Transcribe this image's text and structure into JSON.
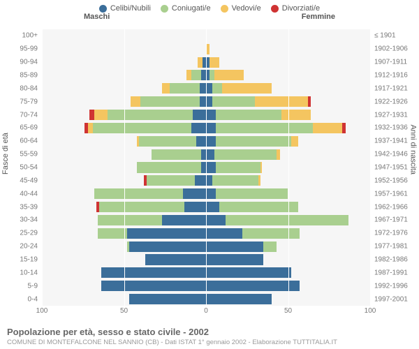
{
  "legend": [
    {
      "label": "Celibi/Nubili",
      "color": "#3b6e9a"
    },
    {
      "label": "Coniugati/e",
      "color": "#a9cf8f"
    },
    {
      "label": "Vedovi/e",
      "color": "#f4c560"
    },
    {
      "label": "Divorziati/e",
      "color": "#cf3333"
    }
  ],
  "gender_labels": {
    "male": "Maschi",
    "female": "Femmine"
  },
  "yaxis_left_title": "Fasce di età",
  "yaxis_right_title": "Anni di nascita",
  "xaxis": {
    "min": -100,
    "max": 100,
    "ticks": [
      -100,
      -50,
      0,
      50,
      100
    ],
    "tick_labels": [
      "100",
      "50",
      "0",
      "50",
      "100"
    ]
  },
  "grid_color": "#ffffff",
  "plot_bg": "#f6f6f6",
  "series_order": [
    "celibi",
    "coniugati",
    "vedovi",
    "divorziati"
  ],
  "series_colors": {
    "celibi": "#3b6e9a",
    "coniugati": "#a9cf8f",
    "vedovi": "#f4c560",
    "divorziati": "#cf3333"
  },
  "age_bands": [
    "0-4",
    "5-9",
    "10-14",
    "15-19",
    "20-24",
    "25-29",
    "30-34",
    "35-39",
    "40-44",
    "45-49",
    "50-54",
    "55-59",
    "60-64",
    "65-69",
    "70-74",
    "75-79",
    "80-84",
    "85-89",
    "90-94",
    "95-99",
    "100+"
  ],
  "year_bands": [
    "1997-2001",
    "1992-1996",
    "1987-1991",
    "1982-1986",
    "1977-1981",
    "1972-1976",
    "1967-1971",
    "1962-1966",
    "1957-1961",
    "1952-1956",
    "1947-1951",
    "1942-1946",
    "1937-1941",
    "1932-1936",
    "1927-1931",
    "1922-1926",
    "1917-1921",
    "1912-1916",
    "1907-1911",
    "1902-1906",
    "≤ 1901"
  ],
  "data": {
    "male": [
      {
        "celibi": 47,
        "coniugati": 0,
        "vedovi": 0,
        "divorziati": 0
      },
      {
        "celibi": 64,
        "coniugati": 0,
        "vedovi": 0,
        "divorziati": 0
      },
      {
        "celibi": 64,
        "coniugati": 0,
        "vedovi": 0,
        "divorziati": 0
      },
      {
        "celibi": 37,
        "coniugati": 0,
        "vedovi": 0,
        "divorziati": 0
      },
      {
        "celibi": 47,
        "coniugati": 1,
        "vedovi": 0,
        "divorziati": 0
      },
      {
        "celibi": 48,
        "coniugati": 18,
        "vedovi": 0,
        "divorziati": 0
      },
      {
        "celibi": 27,
        "coniugati": 39,
        "vedovi": 0,
        "divorziati": 0
      },
      {
        "celibi": 13,
        "coniugati": 52,
        "vedovi": 0,
        "divorziati": 2
      },
      {
        "celibi": 14,
        "coniugati": 54,
        "vedovi": 0,
        "divorziati": 0
      },
      {
        "celibi": 7,
        "coniugati": 29,
        "vedovi": 0,
        "divorziati": 2
      },
      {
        "celibi": 3,
        "coniugati": 39,
        "vedovi": 0,
        "divorziati": 0
      },
      {
        "celibi": 3,
        "coniugati": 30,
        "vedovi": 0,
        "divorziati": 0
      },
      {
        "celibi": 6,
        "coniugati": 35,
        "vedovi": 1,
        "divorziati": 0
      },
      {
        "celibi": 9,
        "coniugati": 60,
        "vedovi": 3,
        "divorziati": 2
      },
      {
        "celibi": 8,
        "coniugati": 52,
        "vedovi": 8,
        "divorziati": 3
      },
      {
        "celibi": 4,
        "coniugati": 36,
        "vedovi": 6,
        "divorziati": 0
      },
      {
        "celibi": 4,
        "coniugati": 18,
        "vedovi": 5,
        "divorziati": 0
      },
      {
        "celibi": 3,
        "coniugati": 6,
        "vedovi": 3,
        "divorziati": 0
      },
      {
        "celibi": 2,
        "coniugati": 0,
        "vedovi": 3,
        "divorziati": 0
      },
      {
        "celibi": 0,
        "coniugati": 0,
        "vedovi": 0,
        "divorziati": 0
      },
      {
        "celibi": 0,
        "coniugati": 0,
        "vedovi": 0,
        "divorziati": 0
      }
    ],
    "female": [
      {
        "celibi": 40,
        "coniugati": 0,
        "vedovi": 0,
        "divorziati": 0
      },
      {
        "celibi": 57,
        "coniugati": 0,
        "vedovi": 0,
        "divorziati": 0
      },
      {
        "celibi": 52,
        "coniugati": 0,
        "vedovi": 0,
        "divorziati": 0
      },
      {
        "celibi": 35,
        "coniugati": 0,
        "vedovi": 0,
        "divorziati": 0
      },
      {
        "celibi": 35,
        "coniugati": 8,
        "vedovi": 0,
        "divorziati": 0
      },
      {
        "celibi": 22,
        "coniugati": 35,
        "vedovi": 0,
        "divorziati": 0
      },
      {
        "celibi": 12,
        "coniugati": 75,
        "vedovi": 0,
        "divorziati": 0
      },
      {
        "celibi": 8,
        "coniugati": 48,
        "vedovi": 0,
        "divorziati": 0
      },
      {
        "celibi": 6,
        "coniugati": 44,
        "vedovi": 0,
        "divorziati": 0
      },
      {
        "celibi": 4,
        "coniugati": 28,
        "vedovi": 1,
        "divorziati": 0
      },
      {
        "celibi": 6,
        "coniugati": 27,
        "vedovi": 1,
        "divorziati": 0
      },
      {
        "celibi": 5,
        "coniugati": 38,
        "vedovi": 2,
        "divorziati": 0
      },
      {
        "celibi": 6,
        "coniugati": 46,
        "vedovi": 4,
        "divorziati": 0
      },
      {
        "celibi": 6,
        "coniugati": 59,
        "vedovi": 18,
        "divorziati": 2
      },
      {
        "celibi": 6,
        "coniugati": 40,
        "vedovi": 18,
        "divorziati": 0
      },
      {
        "celibi": 4,
        "coniugati": 26,
        "vedovi": 32,
        "divorziati": 2
      },
      {
        "celibi": 4,
        "coniugati": 6,
        "vedovi": 30,
        "divorziati": 0
      },
      {
        "celibi": 2,
        "coniugati": 3,
        "vedovi": 18,
        "divorziati": 0
      },
      {
        "celibi": 2,
        "coniugati": 0,
        "vedovi": 6,
        "divorziati": 0
      },
      {
        "celibi": 0,
        "coniugati": 0,
        "vedovi": 2,
        "divorziati": 0
      },
      {
        "celibi": 0,
        "coniugati": 0,
        "vedovi": 0,
        "divorziati": 0
      }
    ]
  },
  "footer": {
    "title": "Popolazione per età, sesso e stato civile - 2002",
    "subtitle": "COMUNE DI MONTEFALCONE NEL SANNIO (CB) - Dati ISTAT 1° gennaio 2002 - Elaborazione TUTTITALIA.IT"
  },
  "fontsize": {
    "legend": 11,
    "axis_tick": 10,
    "axis_title": 11,
    "footer_title": 13,
    "footer_sub": 9.5
  }
}
